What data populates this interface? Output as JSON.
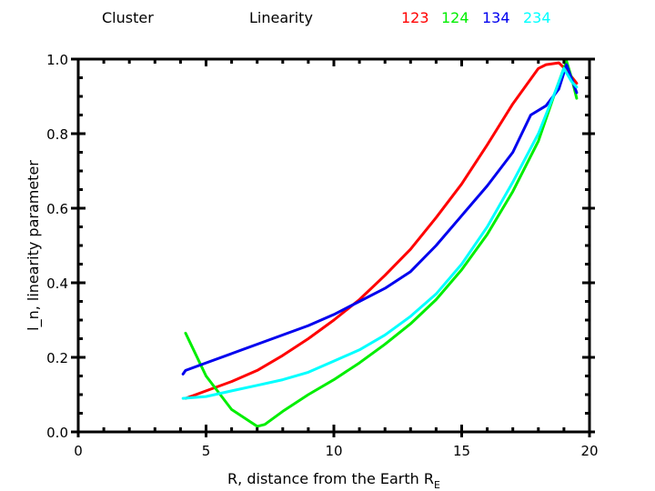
{
  "header": {
    "left": "Cluster",
    "center": "Linearity"
  },
  "chart_data": {
    "type": "line",
    "title": "Cluster Linearity",
    "xlabel": "R, distance from the Earth R_E",
    "xlabel_main": "R, distance from the Earth R",
    "xlabel_sub": "E",
    "ylabel": "l_n, linearity parameter",
    "xlim": [
      0,
      20
    ],
    "ylim": [
      0,
      1.0
    ],
    "xticks": [
      0,
      5,
      10,
      15,
      20
    ],
    "xtick_labels": [
      "0",
      "5",
      "10",
      "15",
      "20"
    ],
    "yticks": [
      0.0,
      0.2,
      0.4,
      0.6,
      0.8,
      1.0
    ],
    "ytick_labels": [
      "0.0",
      "0.2",
      "0.4",
      "0.6",
      "0.8",
      "1.0"
    ],
    "x_minor_step": 1,
    "y_minor_step": 0.05,
    "grid": false,
    "legend_position": "top",
    "series": [
      {
        "name": "123",
        "color": "#ff0000",
        "x": [
          4.2,
          5,
          6,
          7,
          8,
          9,
          10,
          11,
          12,
          13,
          14,
          15,
          16,
          17,
          18,
          18.3,
          18.8,
          19.1,
          19.5
        ],
        "y": [
          0.09,
          0.11,
          0.135,
          0.165,
          0.205,
          0.25,
          0.3,
          0.355,
          0.42,
          0.49,
          0.575,
          0.665,
          0.77,
          0.88,
          0.975,
          0.985,
          0.99,
          0.97,
          0.935
        ]
      },
      {
        "name": "124",
        "color": "#00ee00",
        "x": [
          4.2,
          5,
          6,
          7,
          7.3,
          8,
          9,
          10,
          11,
          12,
          13,
          14,
          15,
          16,
          17,
          18,
          18.7,
          19.1,
          19.3,
          19.5
        ],
        "y": [
          0.265,
          0.15,
          0.06,
          0.015,
          0.02,
          0.055,
          0.1,
          0.14,
          0.185,
          0.235,
          0.29,
          0.355,
          0.435,
          0.53,
          0.645,
          0.78,
          0.92,
          0.995,
          0.95,
          0.895
        ]
      },
      {
        "name": "134",
        "color": "#0000ee",
        "x": [
          4.1,
          4.2,
          5,
          6,
          7,
          8,
          9,
          10,
          11,
          12,
          13,
          14,
          15,
          16,
          17,
          17.7,
          18.3,
          18.8,
          19.1,
          19.5
        ],
        "y": [
          0.155,
          0.165,
          0.185,
          0.21,
          0.235,
          0.26,
          0.285,
          0.315,
          0.35,
          0.385,
          0.43,
          0.5,
          0.58,
          0.66,
          0.75,
          0.85,
          0.875,
          0.92,
          0.985,
          0.91
        ]
      },
      {
        "name": "234",
        "color": "#00ffff",
        "x": [
          4.1,
          5,
          6,
          7,
          8,
          9,
          10,
          11,
          12,
          13,
          14,
          15,
          16,
          17,
          18,
          18.7,
          19.0,
          19.3,
          19.5
        ],
        "y": [
          0.09,
          0.095,
          0.11,
          0.125,
          0.14,
          0.16,
          0.19,
          0.22,
          0.26,
          0.31,
          0.37,
          0.45,
          0.55,
          0.67,
          0.8,
          0.92,
          0.975,
          0.94,
          0.925
        ]
      }
    ]
  }
}
